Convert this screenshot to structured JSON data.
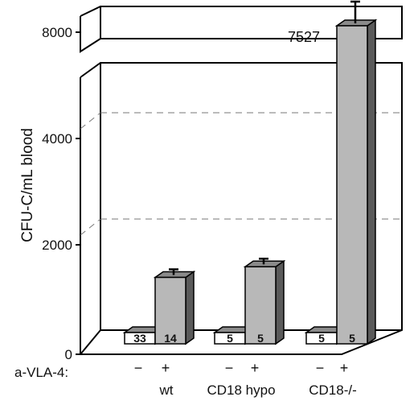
{
  "chart_data": {
    "type": "bar",
    "ylabel": "CFU-C/mL blood",
    "y_ticks": [
      "0",
      "2000",
      "4000",
      "8000"
    ],
    "treatment_label": "a-VLA-4:",
    "treatment_signs": [
      "−",
      "+"
    ],
    "groups": [
      "wt",
      "CD18 hypo",
      "CD18-/-"
    ],
    "bars": [
      {
        "group": "wt",
        "treatment": "−",
        "value": 33,
        "label": "33"
      },
      {
        "group": "wt",
        "treatment": "+",
        "value": 1250,
        "label": "14"
      },
      {
        "group": "CD18 hypo",
        "treatment": "−",
        "value": 5,
        "label": "5"
      },
      {
        "group": "CD18 hypo",
        "treatment": "+",
        "value": 1450,
        "label": "5"
      },
      {
        "group": "CD18-/-",
        "treatment": "−",
        "value": 5,
        "label": "5"
      },
      {
        "group": "CD18-/-",
        "treatment": "+",
        "value": 7527,
        "label": "5"
      }
    ],
    "annotation": "7527",
    "ylim": [
      0,
      8000
    ],
    "axis_break": true,
    "grid": "dashed lines at 2000 and 4000 on back wall",
    "bar_colors": {
      "minus": "#ffffff",
      "plus": "#b8b8b8",
      "side": "#5a5a5a",
      "top": "#8a8a8a"
    }
  }
}
